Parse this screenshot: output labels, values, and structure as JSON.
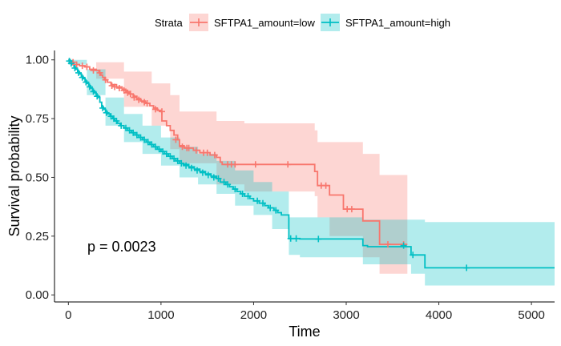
{
  "chart_data": {
    "type": "line",
    "subtype": "kaplan-meier survival curve with confidence bands and censor marks",
    "xlabel": "Time",
    "ylabel": "Survival probability",
    "xlim": [
      -150,
      5250
    ],
    "ylim": [
      -0.03,
      1.04
    ],
    "x_ticks": [
      0,
      1000,
      2000,
      3000,
      4000,
      5000
    ],
    "y_ticks": [
      0.0,
      0.25,
      0.5,
      0.75,
      1.0
    ],
    "y_tick_labels": [
      "0.00",
      "0.25",
      "0.50",
      "0.75",
      "1.00"
    ],
    "grid": false,
    "legend": {
      "title": "Strata",
      "position": "top",
      "entries": [
        "SFTPA1_amount=low",
        "SFTPA1_amount=high"
      ]
    },
    "annotation": "p = 0.0023",
    "series": [
      {
        "name": "SFTPA1_amount=low",
        "color": "#F8766D",
        "band_color": "#F8766D",
        "steps": [
          [
            0,
            1.0
          ],
          [
            20,
            0.99
          ],
          [
            60,
            0.98
          ],
          [
            120,
            0.975
          ],
          [
            180,
            0.97
          ],
          [
            230,
            0.96
          ],
          [
            300,
            0.955
          ],
          [
            330,
            0.945
          ],
          [
            350,
            0.935
          ],
          [
            370,
            0.925
          ],
          [
            390,
            0.915
          ],
          [
            420,
            0.905
          ],
          [
            460,
            0.895
          ],
          [
            520,
            0.885
          ],
          [
            580,
            0.875
          ],
          [
            620,
            0.865
          ],
          [
            660,
            0.855
          ],
          [
            700,
            0.845
          ],
          [
            740,
            0.835
          ],
          [
            780,
            0.825
          ],
          [
            830,
            0.815
          ],
          [
            880,
            0.805
          ],
          [
            920,
            0.795
          ],
          [
            960,
            0.785
          ],
          [
            1000,
            0.78
          ],
          [
            1010,
            0.74
          ],
          [
            1060,
            0.72
          ],
          [
            1100,
            0.7
          ],
          [
            1140,
            0.68
          ],
          [
            1180,
            0.66
          ],
          [
            1200,
            0.635
          ],
          [
            1250,
            0.625
          ],
          [
            1350,
            0.615
          ],
          [
            1420,
            0.605
          ],
          [
            1530,
            0.595
          ],
          [
            1600,
            0.585
          ],
          [
            1640,
            0.565
          ],
          [
            1660,
            0.555
          ],
          [
            2660,
            0.525
          ],
          [
            2690,
            0.465
          ],
          [
            2820,
            0.425
          ],
          [
            2970,
            0.365
          ],
          [
            3180,
            0.315
          ],
          [
            3360,
            0.215
          ],
          [
            3660,
            0.215
          ]
        ],
        "censored": [
          [
            50,
            0.99
          ],
          [
            90,
            0.98
          ],
          [
            150,
            0.975
          ],
          [
            200,
            0.97
          ],
          [
            270,
            0.955
          ],
          [
            340,
            0.945
          ],
          [
            400,
            0.915
          ],
          [
            470,
            0.89
          ],
          [
            500,
            0.885
          ],
          [
            550,
            0.88
          ],
          [
            600,
            0.87
          ],
          [
            640,
            0.86
          ],
          [
            670,
            0.855
          ],
          [
            710,
            0.84
          ],
          [
            760,
            0.83
          ],
          [
            820,
            0.82
          ],
          [
            850,
            0.815
          ],
          [
            940,
            0.79
          ],
          [
            1010,
            0.78
          ],
          [
            1160,
            0.66
          ],
          [
            1230,
            0.63
          ],
          [
            1280,
            0.625
          ],
          [
            1300,
            0.625
          ],
          [
            1380,
            0.615
          ],
          [
            1460,
            0.605
          ],
          [
            1500,
            0.605
          ],
          [
            1580,
            0.595
          ],
          [
            1720,
            0.555
          ],
          [
            1760,
            0.555
          ],
          [
            1800,
            0.555
          ],
          [
            2020,
            0.555
          ],
          [
            2370,
            0.555
          ],
          [
            2730,
            0.465
          ],
          [
            2780,
            0.465
          ],
          [
            3010,
            0.365
          ],
          [
            3060,
            0.365
          ],
          [
            3450,
            0.215
          ],
          [
            3620,
            0.215
          ]
        ],
        "ci_upper": [
          [
            0,
            1.0
          ],
          [
            300,
            0.99
          ],
          [
            600,
            0.95
          ],
          [
            900,
            0.9
          ],
          [
            1100,
            0.85
          ],
          [
            1200,
            0.78
          ],
          [
            1600,
            0.74
          ],
          [
            1900,
            0.73
          ],
          [
            2660,
            0.7
          ],
          [
            2690,
            0.65
          ],
          [
            2820,
            0.65
          ],
          [
            3180,
            0.6
          ],
          [
            3360,
            0.51
          ],
          [
            3660,
            0.51
          ]
        ],
        "ci_lower": [
          [
            0,
            1.0
          ],
          [
            300,
            0.92
          ],
          [
            600,
            0.8
          ],
          [
            900,
            0.72
          ],
          [
            1100,
            0.62
          ],
          [
            1200,
            0.56
          ],
          [
            1600,
            0.47
          ],
          [
            1900,
            0.44
          ],
          [
            2660,
            0.42
          ],
          [
            2690,
            0.33
          ],
          [
            2820,
            0.25
          ],
          [
            3180,
            0.16
          ],
          [
            3360,
            0.09
          ],
          [
            3660,
            0.09
          ]
        ]
      },
      {
        "name": "SFTPA1_amount=high",
        "color": "#00BFC4",
        "band_color": "#00BFC4",
        "steps": [
          [
            0,
            1.0
          ],
          [
            20,
            0.99
          ],
          [
            40,
            0.98
          ],
          [
            60,
            0.97
          ],
          [
            80,
            0.96
          ],
          [
            100,
            0.95
          ],
          [
            120,
            0.94
          ],
          [
            140,
            0.93
          ],
          [
            160,
            0.92
          ],
          [
            180,
            0.91
          ],
          [
            200,
            0.9
          ],
          [
            220,
            0.89
          ],
          [
            240,
            0.88
          ],
          [
            260,
            0.87
          ],
          [
            280,
            0.86
          ],
          [
            300,
            0.85
          ],
          [
            320,
            0.84
          ],
          [
            340,
            0.82
          ],
          [
            360,
            0.8
          ],
          [
            380,
            0.79
          ],
          [
            400,
            0.78
          ],
          [
            420,
            0.77
          ],
          [
            450,
            0.76
          ],
          [
            480,
            0.75
          ],
          [
            500,
            0.74
          ],
          [
            530,
            0.73
          ],
          [
            560,
            0.72
          ],
          [
            600,
            0.71
          ],
          [
            640,
            0.7
          ],
          [
            680,
            0.69
          ],
          [
            720,
            0.68
          ],
          [
            760,
            0.67
          ],
          [
            800,
            0.66
          ],
          [
            840,
            0.65
          ],
          [
            880,
            0.64
          ],
          [
            920,
            0.63
          ],
          [
            960,
            0.62
          ],
          [
            1000,
            0.61
          ],
          [
            1040,
            0.6
          ],
          [
            1080,
            0.59
          ],
          [
            1120,
            0.58
          ],
          [
            1160,
            0.57
          ],
          [
            1200,
            0.56
          ],
          [
            1240,
            0.555
          ],
          [
            1300,
            0.545
          ],
          [
            1360,
            0.535
          ],
          [
            1420,
            0.525
          ],
          [
            1480,
            0.515
          ],
          [
            1540,
            0.505
          ],
          [
            1600,
            0.495
          ],
          [
            1640,
            0.48
          ],
          [
            1700,
            0.47
          ],
          [
            1740,
            0.46
          ],
          [
            1780,
            0.45
          ],
          [
            1820,
            0.44
          ],
          [
            1860,
            0.43
          ],
          [
            1900,
            0.42
          ],
          [
            1960,
            0.41
          ],
          [
            2000,
            0.4
          ],
          [
            2060,
            0.39
          ],
          [
            2120,
            0.38
          ],
          [
            2160,
            0.37
          ],
          [
            2220,
            0.36
          ],
          [
            2260,
            0.35
          ],
          [
            2300,
            0.34
          ],
          [
            2380,
            0.24
          ],
          [
            2500,
            0.238
          ],
          [
            3180,
            0.21
          ],
          [
            3230,
            0.205
          ],
          [
            3700,
            0.17
          ],
          [
            3850,
            0.115
          ],
          [
            5250,
            0.115
          ]
        ],
        "censored": [
          [
            10,
            0.995
          ],
          [
            30,
            0.985
          ],
          [
            70,
            0.965
          ],
          [
            110,
            0.945
          ],
          [
            150,
            0.925
          ],
          [
            190,
            0.905
          ],
          [
            230,
            0.885
          ],
          [
            270,
            0.865
          ],
          [
            310,
            0.845
          ],
          [
            370,
            0.795
          ],
          [
            410,
            0.775
          ],
          [
            460,
            0.76
          ],
          [
            490,
            0.75
          ],
          [
            520,
            0.74
          ],
          [
            570,
            0.72
          ],
          [
            620,
            0.71
          ],
          [
            660,
            0.7
          ],
          [
            700,
            0.69
          ],
          [
            740,
            0.68
          ],
          [
            780,
            0.67
          ],
          [
            820,
            0.66
          ],
          [
            860,
            0.65
          ],
          [
            900,
            0.64
          ],
          [
            940,
            0.63
          ],
          [
            980,
            0.62
          ],
          [
            1020,
            0.61
          ],
          [
            1060,
            0.6
          ],
          [
            1100,
            0.59
          ],
          [
            1140,
            0.58
          ],
          [
            1180,
            0.57
          ],
          [
            1220,
            0.56
          ],
          [
            1270,
            0.55
          ],
          [
            1330,
            0.54
          ],
          [
            1390,
            0.53
          ],
          [
            1450,
            0.52
          ],
          [
            1510,
            0.51
          ],
          [
            1570,
            0.5
          ],
          [
            1620,
            0.495
          ],
          [
            1680,
            0.48
          ],
          [
            1720,
            0.47
          ],
          [
            1800,
            0.45
          ],
          [
            1880,
            0.43
          ],
          [
            1940,
            0.42
          ],
          [
            2040,
            0.4
          ],
          [
            2100,
            0.39
          ],
          [
            2180,
            0.37
          ],
          [
            2240,
            0.36
          ],
          [
            2400,
            0.24
          ],
          [
            2460,
            0.24
          ],
          [
            2700,
            0.238
          ],
          [
            3620,
            0.21
          ],
          [
            3720,
            0.17
          ],
          [
            4300,
            0.115
          ]
        ],
        "ci_upper": [
          [
            0,
            1.0
          ],
          [
            200,
            0.96
          ],
          [
            400,
            0.84
          ],
          [
            600,
            0.77
          ],
          [
            800,
            0.72
          ],
          [
            1000,
            0.67
          ],
          [
            1200,
            0.63
          ],
          [
            1400,
            0.6
          ],
          [
            1600,
            0.57
          ],
          [
            1800,
            0.53
          ],
          [
            2000,
            0.48
          ],
          [
            2200,
            0.44
          ],
          [
            2380,
            0.33
          ],
          [
            2500,
            0.33
          ],
          [
            3180,
            0.32
          ],
          [
            3700,
            0.32
          ],
          [
            3850,
            0.31
          ],
          [
            5250,
            0.31
          ]
        ],
        "ci_lower": [
          [
            0,
            0.98
          ],
          [
            200,
            0.85
          ],
          [
            400,
            0.72
          ],
          [
            600,
            0.65
          ],
          [
            800,
            0.6
          ],
          [
            1000,
            0.55
          ],
          [
            1200,
            0.5
          ],
          [
            1400,
            0.47
          ],
          [
            1600,
            0.43
          ],
          [
            1800,
            0.38
          ],
          [
            2000,
            0.34
          ],
          [
            2200,
            0.28
          ],
          [
            2380,
            0.17
          ],
          [
            2500,
            0.16
          ],
          [
            3180,
            0.13
          ],
          [
            3700,
            0.09
          ],
          [
            3850,
            0.04
          ],
          [
            5250,
            0.04
          ]
        ]
      }
    ]
  }
}
